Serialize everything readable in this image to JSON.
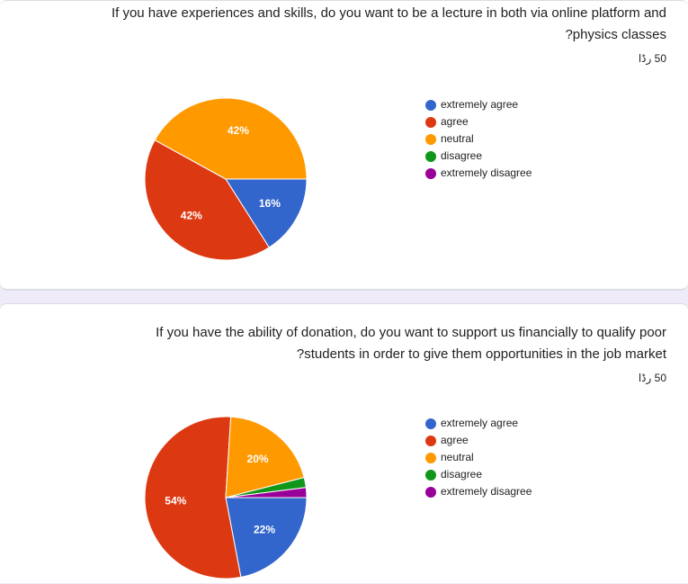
{
  "colors": {
    "extremely_agree": "#3366cc",
    "agree": "#dc3912",
    "neutral": "#ff9900",
    "disagree": "#109618",
    "extremely_disagree": "#990099"
  },
  "questions": [
    {
      "line1": "If you have experiences and skills, do you want to be a lecture in both via online platform and",
      "line2": "?physics classes",
      "responses": "50 رڈا"
    },
    {
      "line1": "If you have the ability of donation, do you want to support us financially to qualify poor",
      "line2": "?students in order to give them opportunities in the job market",
      "responses": "50 رڈا"
    }
  ],
  "chart_data": [
    {
      "type": "pie",
      "legend_position": "right",
      "slices": [
        {
          "name": "extremely agree",
          "value": 16,
          "label": "16%",
          "color": "#3366cc"
        },
        {
          "name": "agree",
          "value": 42,
          "label": "42%",
          "color": "#dc3912"
        },
        {
          "name": "neutral",
          "value": 42,
          "label": "42%",
          "color": "#ff9900"
        },
        {
          "name": "disagree",
          "value": 0,
          "label": "",
          "color": "#109618"
        },
        {
          "name": "extremely disagree",
          "value": 0,
          "label": "",
          "color": "#990099"
        }
      ]
    },
    {
      "type": "pie",
      "legend_position": "right",
      "slices": [
        {
          "name": "extremely agree",
          "value": 22,
          "label": "22%",
          "color": "#3366cc"
        },
        {
          "name": "agree",
          "value": 54,
          "label": "54%",
          "color": "#dc3912"
        },
        {
          "name": "neutral",
          "value": 20,
          "label": "20%",
          "color": "#ff9900"
        },
        {
          "name": "disagree",
          "value": 2,
          "label": "",
          "color": "#109618"
        },
        {
          "name": "extremely disagree",
          "value": 2,
          "label": "",
          "color": "#990099"
        }
      ]
    }
  ]
}
